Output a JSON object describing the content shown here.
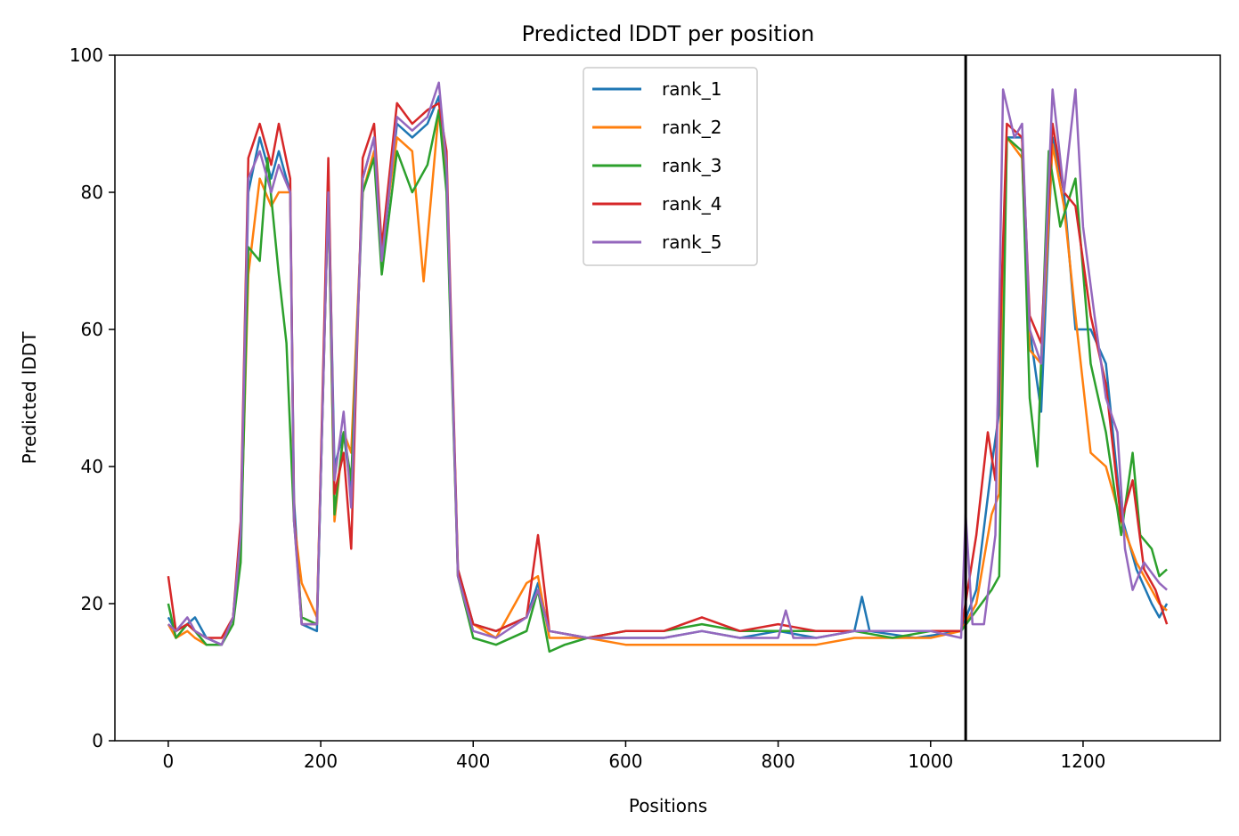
{
  "chart_data": {
    "type": "line",
    "title": "Predicted lDDT per position",
    "xlabel": "Positions",
    "ylabel": "Predicted lDDT",
    "xlim": [
      -70,
      1380
    ],
    "ylim": [
      0,
      100
    ],
    "xticks": [
      0,
      200,
      400,
      600,
      800,
      1000,
      1200
    ],
    "yticks": [
      0,
      20,
      40,
      60,
      80,
      100
    ],
    "legend_position": "upper center",
    "vertical_line_x": 1046,
    "series": [
      {
        "name": "rank_1",
        "color": "#1f77b4",
        "points": [
          [
            0,
            18
          ],
          [
            10,
            16
          ],
          [
            25,
            17
          ],
          [
            35,
            18
          ],
          [
            50,
            15
          ],
          [
            70,
            14
          ],
          [
            85,
            18
          ],
          [
            95,
            30
          ],
          [
            105,
            80
          ],
          [
            120,
            88
          ],
          [
            135,
            82
          ],
          [
            145,
            86
          ],
          [
            160,
            80
          ],
          [
            165,
            35
          ],
          [
            175,
            17
          ],
          [
            195,
            16
          ],
          [
            210,
            82
          ],
          [
            218,
            40
          ],
          [
            230,
            45
          ],
          [
            240,
            36
          ],
          [
            255,
            82
          ],
          [
            270,
            88
          ],
          [
            280,
            70
          ],
          [
            300,
            90
          ],
          [
            320,
            88
          ],
          [
            340,
            90
          ],
          [
            355,
            94
          ],
          [
            365,
            82
          ],
          [
            380,
            25
          ],
          [
            400,
            17
          ],
          [
            430,
            16
          ],
          [
            470,
            18
          ],
          [
            485,
            23
          ],
          [
            500,
            16
          ],
          [
            550,
            15
          ],
          [
            600,
            15
          ],
          [
            650,
            15
          ],
          [
            700,
            16
          ],
          [
            750,
            15
          ],
          [
            800,
            16
          ],
          [
            850,
            15
          ],
          [
            900,
            16
          ],
          [
            910,
            21
          ],
          [
            920,
            16
          ],
          [
            980,
            15
          ],
          [
            1040,
            16
          ],
          [
            1060,
            22
          ],
          [
            1080,
            40
          ],
          [
            1090,
            48
          ],
          [
            1100,
            88
          ],
          [
            1120,
            88
          ],
          [
            1130,
            60
          ],
          [
            1145,
            48
          ],
          [
            1160,
            88
          ],
          [
            1175,
            80
          ],
          [
            1190,
            60
          ],
          [
            1210,
            60
          ],
          [
            1230,
            55
          ],
          [
            1250,
            33
          ],
          [
            1270,
            25
          ],
          [
            1290,
            20
          ],
          [
            1300,
            18
          ],
          [
            1310,
            20
          ]
        ]
      },
      {
        "name": "rank_2",
        "color": "#ff7f0e",
        "points": [
          [
            0,
            17
          ],
          [
            10,
            15
          ],
          [
            25,
            16
          ],
          [
            35,
            15
          ],
          [
            50,
            14
          ],
          [
            70,
            14
          ],
          [
            85,
            18
          ],
          [
            95,
            28
          ],
          [
            105,
            68
          ],
          [
            120,
            82
          ],
          [
            135,
            78
          ],
          [
            145,
            80
          ],
          [
            160,
            80
          ],
          [
            165,
            32
          ],
          [
            175,
            23
          ],
          [
            195,
            18
          ],
          [
            210,
            80
          ],
          [
            218,
            32
          ],
          [
            230,
            45
          ],
          [
            240,
            42
          ],
          [
            255,
            80
          ],
          [
            270,
            86
          ],
          [
            280,
            72
          ],
          [
            300,
            88
          ],
          [
            320,
            86
          ],
          [
            335,
            67
          ],
          [
            355,
            92
          ],
          [
            365,
            82
          ],
          [
            380,
            24
          ],
          [
            400,
            17
          ],
          [
            430,
            15
          ],
          [
            470,
            23
          ],
          [
            485,
            24
          ],
          [
            500,
            15
          ],
          [
            550,
            15
          ],
          [
            600,
            14
          ],
          [
            650,
            14
          ],
          [
            700,
            14
          ],
          [
            750,
            14
          ],
          [
            800,
            14
          ],
          [
            850,
            14
          ],
          [
            900,
            15
          ],
          [
            950,
            15
          ],
          [
            1000,
            15
          ],
          [
            1040,
            16
          ],
          [
            1060,
            20
          ],
          [
            1080,
            33
          ],
          [
            1090,
            36
          ],
          [
            1100,
            88
          ],
          [
            1120,
            85
          ],
          [
            1130,
            57
          ],
          [
            1145,
            55
          ],
          [
            1160,
            87
          ],
          [
            1175,
            78
          ],
          [
            1190,
            62
          ],
          [
            1210,
            42
          ],
          [
            1230,
            40
          ],
          [
            1250,
            32
          ],
          [
            1270,
            26
          ],
          [
            1290,
            22
          ],
          [
            1300,
            20
          ],
          [
            1310,
            19
          ]
        ]
      },
      {
        "name": "rank_3",
        "color": "#2ca02c",
        "points": [
          [
            0,
            20
          ],
          [
            10,
            15
          ],
          [
            25,
            17
          ],
          [
            35,
            16
          ],
          [
            50,
            14
          ],
          [
            70,
            14
          ],
          [
            85,
            17
          ],
          [
            95,
            26
          ],
          [
            105,
            72
          ],
          [
            120,
            70
          ],
          [
            130,
            85
          ],
          [
            145,
            68
          ],
          [
            155,
            58
          ],
          [
            165,
            32
          ],
          [
            175,
            18
          ],
          [
            195,
            17
          ],
          [
            210,
            80
          ],
          [
            218,
            33
          ],
          [
            230,
            45
          ],
          [
            240,
            38
          ],
          [
            255,
            80
          ],
          [
            270,
            85
          ],
          [
            280,
            68
          ],
          [
            300,
            86
          ],
          [
            320,
            80
          ],
          [
            340,
            84
          ],
          [
            355,
            92
          ],
          [
            365,
            80
          ],
          [
            380,
            24
          ],
          [
            400,
            15
          ],
          [
            430,
            14
          ],
          [
            470,
            16
          ],
          [
            485,
            22
          ],
          [
            500,
            13
          ],
          [
            520,
            14
          ],
          [
            550,
            15
          ],
          [
            600,
            16
          ],
          [
            650,
            16
          ],
          [
            700,
            17
          ],
          [
            750,
            16
          ],
          [
            800,
            16
          ],
          [
            850,
            16
          ],
          [
            900,
            16
          ],
          [
            950,
            15
          ],
          [
            1000,
            16
          ],
          [
            1040,
            16
          ],
          [
            1060,
            19
          ],
          [
            1080,
            22
          ],
          [
            1090,
            24
          ],
          [
            1100,
            88
          ],
          [
            1120,
            86
          ],
          [
            1130,
            50
          ],
          [
            1140,
            40
          ],
          [
            1155,
            86
          ],
          [
            1170,
            75
          ],
          [
            1190,
            82
          ],
          [
            1210,
            55
          ],
          [
            1230,
            45
          ],
          [
            1250,
            30
          ],
          [
            1265,
            42
          ],
          [
            1275,
            30
          ],
          [
            1290,
            28
          ],
          [
            1300,
            24
          ],
          [
            1310,
            25
          ]
        ]
      },
      {
        "name": "rank_4",
        "color": "#d62728",
        "points": [
          [
            0,
            24
          ],
          [
            10,
            16
          ],
          [
            25,
            17
          ],
          [
            35,
            16
          ],
          [
            50,
            15
          ],
          [
            70,
            15
          ],
          [
            85,
            18
          ],
          [
            95,
            32
          ],
          [
            105,
            85
          ],
          [
            120,
            90
          ],
          [
            135,
            84
          ],
          [
            145,
            90
          ],
          [
            160,
            82
          ],
          [
            165,
            33
          ],
          [
            175,
            17
          ],
          [
            195,
            17
          ],
          [
            210,
            85
          ],
          [
            218,
            36
          ],
          [
            230,
            42
          ],
          [
            240,
            28
          ],
          [
            255,
            85
          ],
          [
            270,
            90
          ],
          [
            280,
            72
          ],
          [
            300,
            93
          ],
          [
            320,
            90
          ],
          [
            340,
            92
          ],
          [
            355,
            93
          ],
          [
            365,
            86
          ],
          [
            380,
            25
          ],
          [
            400,
            17
          ],
          [
            430,
            16
          ],
          [
            470,
            18
          ],
          [
            485,
            30
          ],
          [
            500,
            16
          ],
          [
            550,
            15
          ],
          [
            600,
            16
          ],
          [
            650,
            16
          ],
          [
            700,
            18
          ],
          [
            750,
            16
          ],
          [
            800,
            17
          ],
          [
            850,
            16
          ],
          [
            900,
            16
          ],
          [
            950,
            16
          ],
          [
            1000,
            16
          ],
          [
            1040,
            16
          ],
          [
            1060,
            30
          ],
          [
            1075,
            45
          ],
          [
            1085,
            38
          ],
          [
            1100,
            90
          ],
          [
            1120,
            88
          ],
          [
            1130,
            62
          ],
          [
            1145,
            58
          ],
          [
            1160,
            90
          ],
          [
            1175,
            80
          ],
          [
            1190,
            78
          ],
          [
            1210,
            62
          ],
          [
            1230,
            52
          ],
          [
            1250,
            32
          ],
          [
            1265,
            38
          ],
          [
            1280,
            25
          ],
          [
            1295,
            22
          ],
          [
            1310,
            17
          ]
        ]
      },
      {
        "name": "rank_5",
        "color": "#9467bd",
        "points": [
          [
            0,
            17
          ],
          [
            10,
            16
          ],
          [
            25,
            18
          ],
          [
            35,
            16
          ],
          [
            50,
            15
          ],
          [
            70,
            14
          ],
          [
            85,
            18
          ],
          [
            95,
            30
          ],
          [
            105,
            82
          ],
          [
            120,
            86
          ],
          [
            135,
            80
          ],
          [
            145,
            84
          ],
          [
            160,
            80
          ],
          [
            165,
            32
          ],
          [
            175,
            17
          ],
          [
            195,
            17
          ],
          [
            210,
            80
          ],
          [
            218,
            38
          ],
          [
            230,
            48
          ],
          [
            240,
            34
          ],
          [
            255,
            82
          ],
          [
            270,
            88
          ],
          [
            280,
            70
          ],
          [
            300,
            91
          ],
          [
            320,
            89
          ],
          [
            340,
            91
          ],
          [
            355,
            96
          ],
          [
            365,
            84
          ],
          [
            380,
            24
          ],
          [
            400,
            16
          ],
          [
            430,
            15
          ],
          [
            470,
            18
          ],
          [
            485,
            22
          ],
          [
            500,
            16
          ],
          [
            550,
            15
          ],
          [
            600,
            15
          ],
          [
            650,
            15
          ],
          [
            700,
            16
          ],
          [
            750,
            15
          ],
          [
            800,
            15
          ],
          [
            810,
            19
          ],
          [
            820,
            15
          ],
          [
            850,
            15
          ],
          [
            900,
            16
          ],
          [
            950,
            16
          ],
          [
            1000,
            16
          ],
          [
            1040,
            15
          ],
          [
            1046,
            33
          ],
          [
            1055,
            17
          ],
          [
            1070,
            17
          ],
          [
            1085,
            30
          ],
          [
            1095,
            95
          ],
          [
            1110,
            88
          ],
          [
            1120,
            90
          ],
          [
            1130,
            60
          ],
          [
            1145,
            55
          ],
          [
            1160,
            95
          ],
          [
            1175,
            80
          ],
          [
            1190,
            95
          ],
          [
            1200,
            75
          ],
          [
            1215,
            62
          ],
          [
            1230,
            50
          ],
          [
            1245,
            45
          ],
          [
            1255,
            28
          ],
          [
            1265,
            22
          ],
          [
            1280,
            26
          ],
          [
            1300,
            23
          ],
          [
            1310,
            22
          ]
        ]
      }
    ]
  }
}
